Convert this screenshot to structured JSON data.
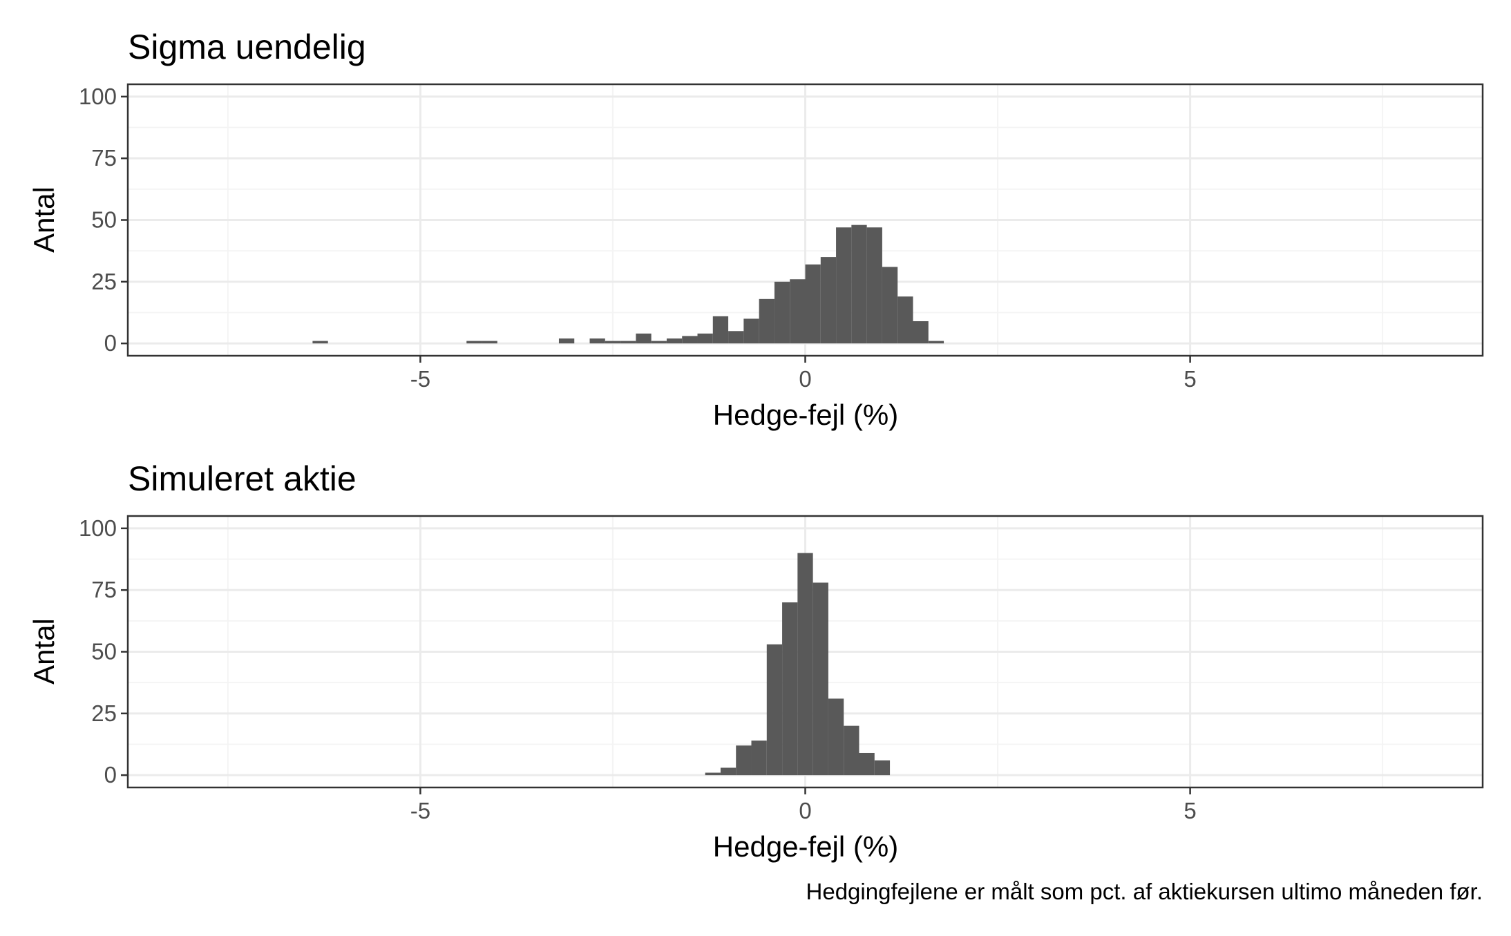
{
  "colors": {
    "bar_fill": "#595959",
    "grid_major": "#ebebeb",
    "grid_minor": "#f4f4f4",
    "panel_border": "#333333",
    "tick_text": "#4d4d4d"
  },
  "caption": "Hedgingfejlene er målt som pct. af aktiekursen ultimo måneden før.",
  "chart_data": [
    {
      "type": "bar",
      "title": "Sigma uendelig",
      "xlabel": "Hedge-fejl (%)",
      "ylabel": "Antal",
      "xlim": [
        -8.8,
        8.8
      ],
      "ylim": [
        -5,
        105
      ],
      "xticks": [
        -5,
        0,
        5
      ],
      "xtick_labels": [
        "-5",
        "0",
        "5"
      ],
      "yticks": [
        0,
        25,
        50,
        75,
        100
      ],
      "ytick_labels": [
        "0",
        "25",
        "50",
        "75",
        "100"
      ],
      "grid": true,
      "bin_width": 0.2,
      "bins": [
        {
          "x": -6.3,
          "count": 1
        },
        {
          "x": -4.3,
          "count": 1
        },
        {
          "x": -4.1,
          "count": 1
        },
        {
          "x": -3.1,
          "count": 2
        },
        {
          "x": -2.7,
          "count": 2
        },
        {
          "x": -2.5,
          "count": 1
        },
        {
          "x": -2.3,
          "count": 1
        },
        {
          "x": -2.1,
          "count": 4
        },
        {
          "x": -1.9,
          "count": 1
        },
        {
          "x": -1.7,
          "count": 2
        },
        {
          "x": -1.5,
          "count": 3
        },
        {
          "x": -1.3,
          "count": 4
        },
        {
          "x": -1.1,
          "count": 11
        },
        {
          "x": -0.9,
          "count": 5
        },
        {
          "x": -0.7,
          "count": 10
        },
        {
          "x": -0.5,
          "count": 18
        },
        {
          "x": -0.3,
          "count": 25
        },
        {
          "x": -0.1,
          "count": 26
        },
        {
          "x": 0.1,
          "count": 32
        },
        {
          "x": 0.3,
          "count": 35
        },
        {
          "x": 0.5,
          "count": 47
        },
        {
          "x": 0.7,
          "count": 48
        },
        {
          "x": 0.9,
          "count": 47
        },
        {
          "x": 1.1,
          "count": 31
        },
        {
          "x": 1.3,
          "count": 19
        },
        {
          "x": 1.5,
          "count": 9
        },
        {
          "x": 1.7,
          "count": 1
        }
      ]
    },
    {
      "type": "bar",
      "title": "Simuleret aktie",
      "xlabel": "Hedge-fejl (%)",
      "ylabel": "Antal",
      "xlim": [
        -8.8,
        8.8
      ],
      "ylim": [
        -5,
        105
      ],
      "xticks": [
        -5,
        0,
        5
      ],
      "xtick_labels": [
        "-5",
        "0",
        "5"
      ],
      "yticks": [
        0,
        25,
        50,
        75,
        100
      ],
      "ytick_labels": [
        "0",
        "25",
        "50",
        "75",
        "100"
      ],
      "grid": true,
      "bin_width": 0.2,
      "bins": [
        {
          "x": -1.2,
          "count": 1
        },
        {
          "x": -1.0,
          "count": 3
        },
        {
          "x": -0.8,
          "count": 12
        },
        {
          "x": -0.6,
          "count": 14
        },
        {
          "x": -0.4,
          "count": 53
        },
        {
          "x": -0.2,
          "count": 70
        },
        {
          "x": 0.0,
          "count": 90
        },
        {
          "x": 0.2,
          "count": 78
        },
        {
          "x": 0.4,
          "count": 31
        },
        {
          "x": 0.6,
          "count": 20
        },
        {
          "x": 0.8,
          "count": 9
        },
        {
          "x": 1.0,
          "count": 6
        }
      ]
    }
  ]
}
